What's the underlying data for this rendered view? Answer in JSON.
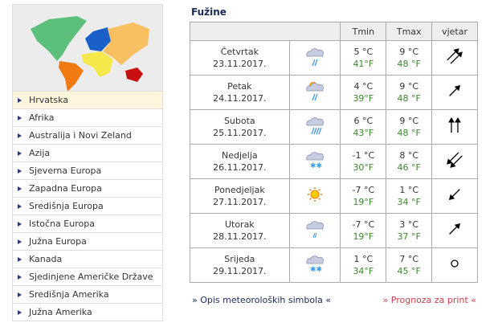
{
  "sidebar": {
    "items": [
      {
        "label": "Hrvatska",
        "active": true
      },
      {
        "label": "Afrika"
      },
      {
        "label": "Australija i Novi Zeland"
      },
      {
        "label": "Azija"
      },
      {
        "label": "Sjeverna Europa"
      },
      {
        "label": "Zapadna Europa"
      },
      {
        "label": "Središnja Europa"
      },
      {
        "label": "Istočna Europa"
      },
      {
        "label": "Južna Europa"
      },
      {
        "label": "Kanada"
      },
      {
        "label": "Sjedinjene Američke Države"
      },
      {
        "label": "Središnja Amerika"
      },
      {
        "label": "Južna Amerika"
      }
    ]
  },
  "forecast": {
    "title": "Fužine",
    "headers": {
      "tmin": "Tmin",
      "tmax": "Tmax",
      "wind": "vjetar"
    },
    "rows": [
      {
        "day": "Četvrtak",
        "date": "23.11.2017.",
        "icon": "cloud-rain-icon",
        "tmin_c": "5 °C",
        "tmin_f": "41°F",
        "tmax_c": "9 °C",
        "tmax_f": "48 °F",
        "wind": "double-arrow-northeast"
      },
      {
        "day": "Petak",
        "date": "24.11.2017.",
        "icon": "sun-cloud-rain-icon",
        "tmin_c": "4 °C",
        "tmin_f": "39°F",
        "tmax_c": "9 °C",
        "tmax_f": "48 °F",
        "wind": "arrow-northeast"
      },
      {
        "day": "Subota",
        "date": "25.11.2017.",
        "icon": "cloud-heavy-rain-icon",
        "tmin_c": "6 °C",
        "tmin_f": "43°F",
        "tmax_c": "9 °C",
        "tmax_f": "48 °F",
        "wind": "double-arrow-north"
      },
      {
        "day": "Nedjelja",
        "date": "26.11.2017.",
        "icon": "cloud-snow-icon",
        "tmin_c": "-1 °C",
        "tmin_f": "30°F",
        "tmax_c": "8 °C",
        "tmax_f": "46 °F",
        "wind": "double-arrow-southwest"
      },
      {
        "day": "Ponedjeljak",
        "date": "27.11.2017.",
        "icon": "sun-icon",
        "tmin_c": "-7 °C",
        "tmin_f": "19°F",
        "tmax_c": "1 °C",
        "tmax_f": "34 °F",
        "wind": "arrow-southwest"
      },
      {
        "day": "Utorak",
        "date": "28.11.2017.",
        "icon": "cloud-light-rain-icon",
        "tmin_c": "-7 °C",
        "tmin_f": "19°F",
        "tmax_c": "3 °C",
        "tmax_f": "37 °F",
        "wind": "arrow-northeast"
      },
      {
        "day": "Srijeda",
        "date": "29.11.2017.",
        "icon": "cloud-snow-icon",
        "tmin_c": "1 °C",
        "tmin_f": "34°F",
        "tmax_c": "7 °C",
        "tmax_f": "45 °F",
        "wind": "calm-circle"
      }
    ]
  },
  "links": {
    "symbols": "» Opis meteoroloških simbola «",
    "print": "» Prognoza za print «"
  },
  "colors": {
    "fahrenheit": "#3a8a2a",
    "print_link": "#c8404a",
    "active_item": "#fdf5dd"
  }
}
